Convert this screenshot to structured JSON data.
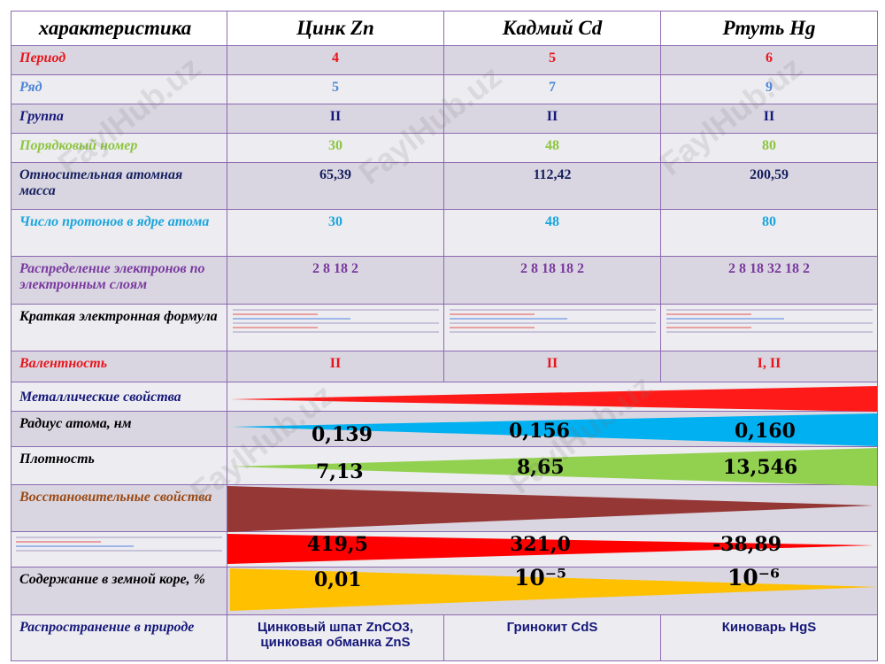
{
  "header": {
    "col0": "характеристика",
    "col1": "Цинк  Zn",
    "col2": "Кадмий  Cd",
    "col3": "Ртуть  Hg"
  },
  "rows": {
    "period": {
      "label": "Период",
      "zn": "4",
      "cd": "5",
      "hg": "6",
      "color": "#e8151b"
    },
    "row": {
      "label": "Ряд",
      "zn": "5",
      "cd": "7",
      "hg": "9",
      "color": "#4f86d6"
    },
    "group": {
      "label": "Группа",
      "zn": "II",
      "cd": "II",
      "hg": "II",
      "color": "#16187a"
    },
    "number": {
      "label": "Порядковый номер",
      "zn": "30",
      "cd": "48",
      "hg": "80",
      "color": "#8dc63f"
    },
    "mass": {
      "label": "Относительная атомная масса",
      "zn": "65,39",
      "cd": "112,42",
      "hg": "200,59",
      "color": "#16205f"
    },
    "protons": {
      "label": "Число протонов в ядре атома",
      "zn": "30",
      "cd": "48",
      "hg": "80",
      "color": "#1aa6dc"
    },
    "electrons": {
      "label": "Распределение электронов по электронным слоям",
      "zn": "2 8 18 2",
      "cd": "2 8 18 18 2",
      "hg": "2 8 18 32 18 2",
      "color": "#7a3aa0"
    },
    "formula": {
      "label": "Краткая электронная формула",
      "color": "#000000"
    },
    "valence": {
      "label": "Валентность",
      "zn": "II",
      "cd": "II",
      "hg": "I, II",
      "color": "#e8151b"
    },
    "metallic": {
      "label": "Металлические свойства",
      "color": "#16187a"
    },
    "radius": {
      "label": "Радиус атома, нм",
      "zn": "0,139",
      "cd": "0,156",
      "hg": "0,160",
      "color": "#000000"
    },
    "density": {
      "label": "Плотность",
      "zn": "7,13",
      "cd": "8,65",
      "hg": "13,546",
      "color": "#000000"
    },
    "reducing": {
      "label": "Восстановительные свойства",
      "color": "#9c4a14"
    },
    "melting": {
      "zn": "419,5",
      "cd": "321,0",
      "hg": "-38,89"
    },
    "crust": {
      "label": "Содержание в земной коре, %",
      "zn": "0,01",
      "cd": "10⁻⁵",
      "hg": "10⁻⁶",
      "color": "#000000"
    },
    "nature": {
      "label": "Распространение в природе",
      "zn": "Цинковый шпат ZnCO3, цинковая обманка ZnS",
      "cd": "Гринокит CdS",
      "hg": "Киноварь HgS",
      "color": "#16187a"
    }
  },
  "colors": {
    "metallic_bar": "#ff1a1a",
    "radius_bar": "#00b0f0",
    "density_bar": "#92d050",
    "reducing_bar": "#953735",
    "melting_bar": "#ff0000",
    "crust_bar": "#ffc000",
    "grid_line": "#8c6ab0"
  },
  "watermark": "FaylHub.uz"
}
